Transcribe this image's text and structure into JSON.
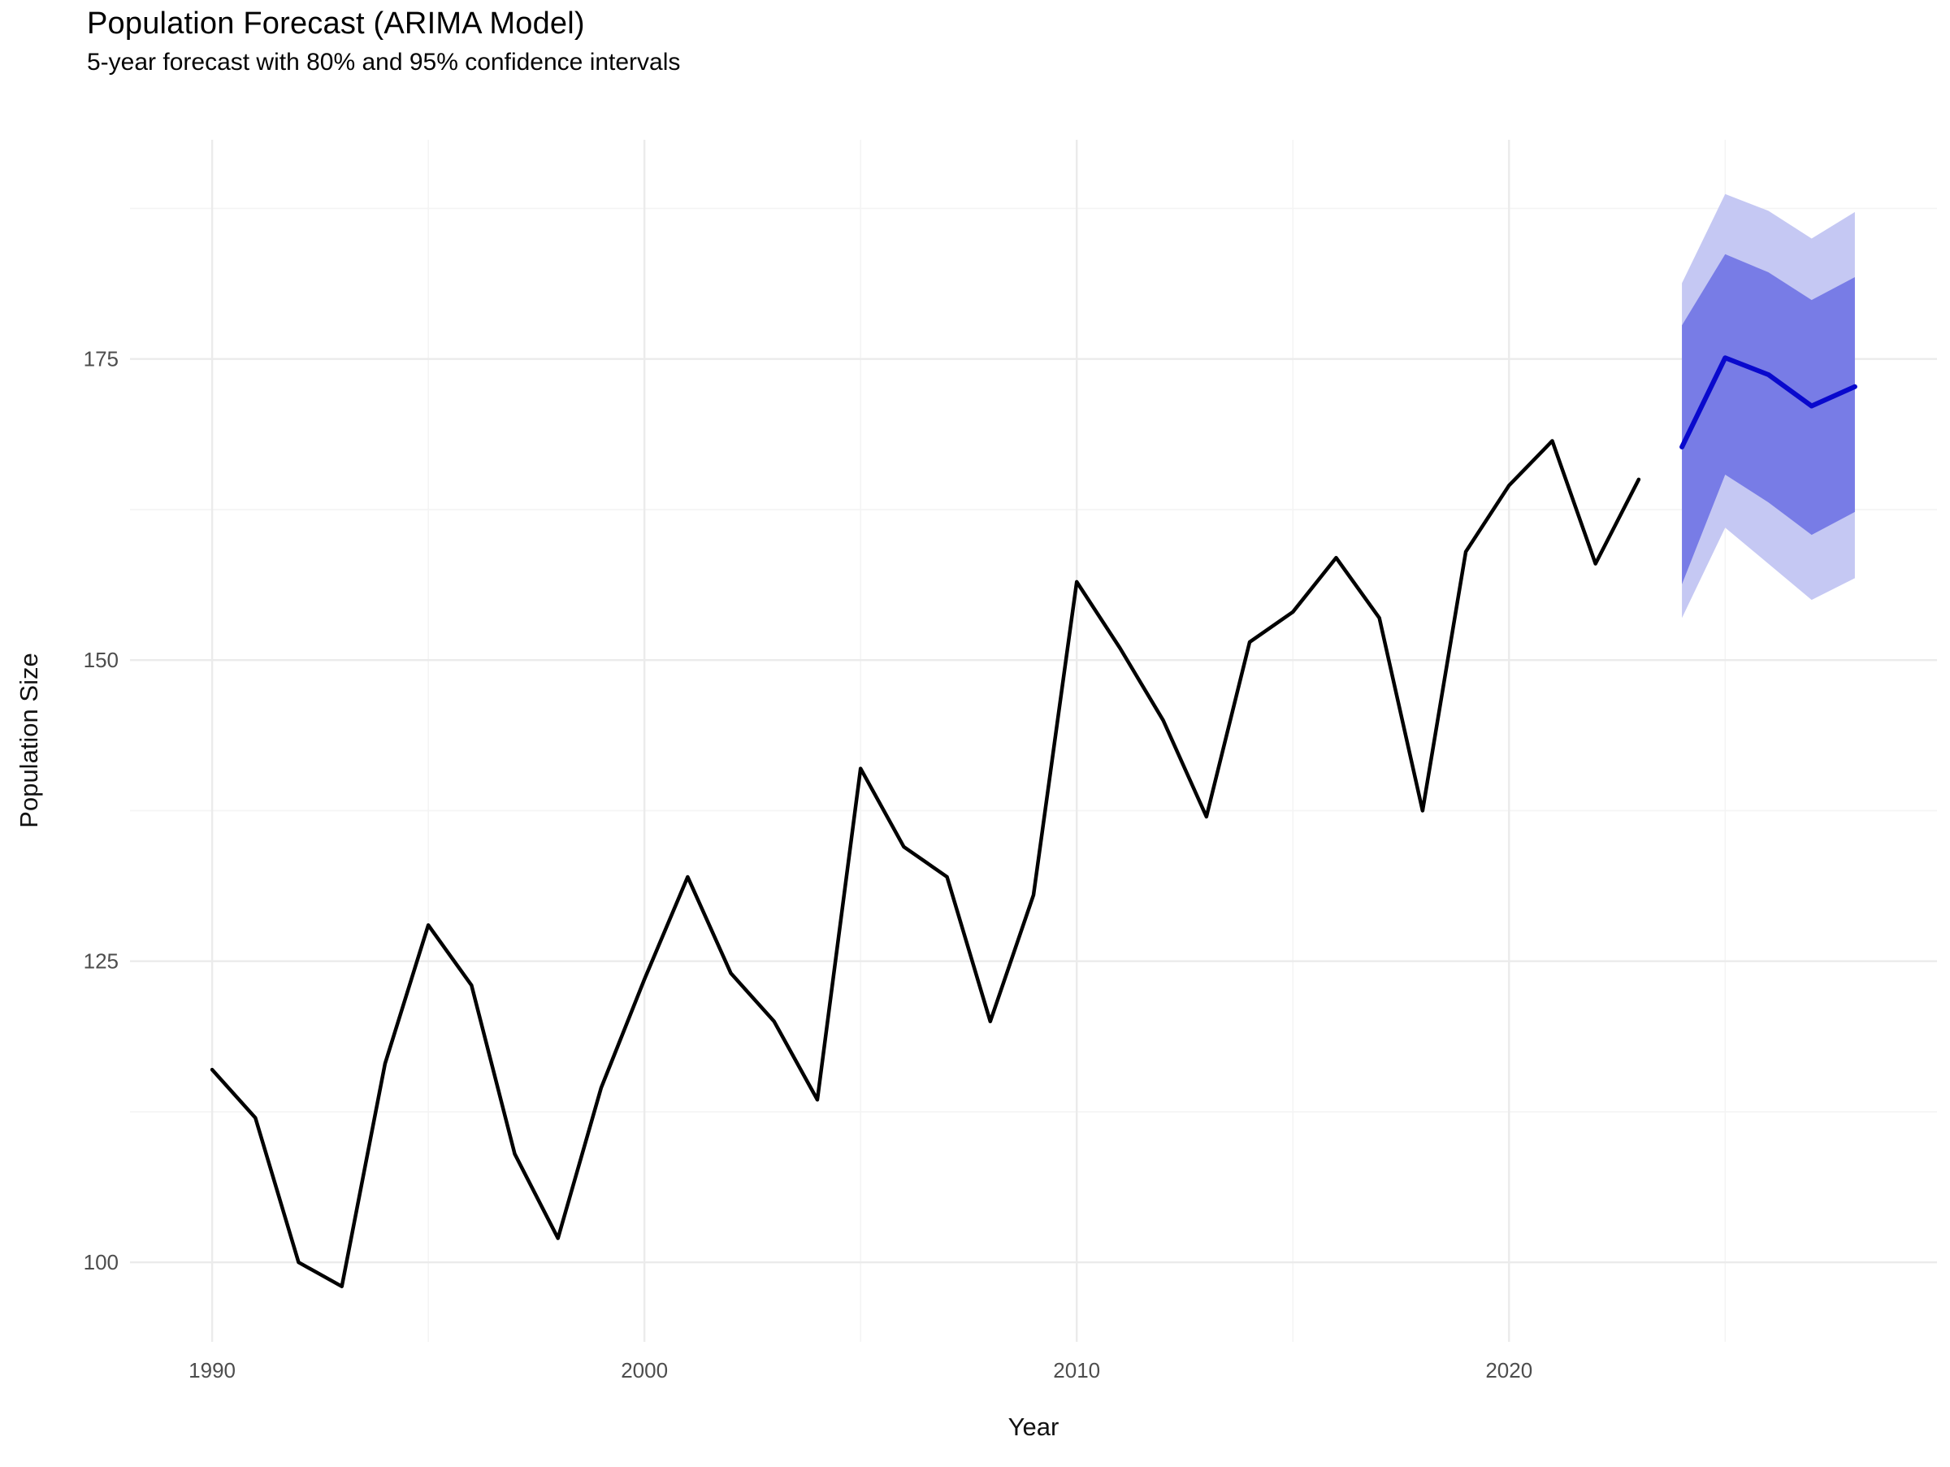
{
  "header": {
    "title": "Population Forecast (ARIMA Model)",
    "subtitle": "5-year forecast with 80% and 95% confidence intervals"
  },
  "chart_data": {
    "type": "line",
    "title": "Population Forecast (ARIMA Model)",
    "subtitle": "5-year forecast with 80% and 95% confidence intervals",
    "xlabel": "Year",
    "ylabel": "Population Size",
    "xlim": [
      1988.1,
      2029.9
    ],
    "ylim": [
      93.4,
      193.2
    ],
    "x_major_ticks": [
      1990,
      2000,
      2010,
      2020
    ],
    "x_minor_ticks": [
      1995,
      2005,
      2015,
      2025
    ],
    "y_major_ticks": [
      100,
      125,
      150,
      175
    ],
    "y_minor_ticks": [
      112.5,
      137.5,
      162.5,
      187.5
    ],
    "grid": true,
    "legend": false,
    "series": [
      {
        "name": "historical",
        "color": "#000000",
        "stroke_width": 4.5,
        "x": [
          1990,
          1991,
          1992,
          1993,
          1994,
          1995,
          1996,
          1997,
          1998,
          1999,
          2000,
          2001,
          2002,
          2003,
          2004,
          2005,
          2006,
          2007,
          2008,
          2009,
          2010,
          2011,
          2012,
          2013,
          2014,
          2015,
          2016,
          2017,
          2018,
          2019,
          2020,
          2021,
          2022,
          2023
        ],
        "y": [
          116,
          112,
          100,
          98,
          116.5,
          128,
          123,
          109,
          102,
          114.5,
          123.5,
          132,
          124,
          120,
          113.5,
          141,
          134.5,
          132,
          120,
          130.5,
          156.5,
          151,
          145,
          137,
          151.5,
          154,
          158.5,
          153.5,
          137.5,
          159,
          164.5,
          168.2,
          158,
          165
        ]
      },
      {
        "name": "forecast",
        "color": "#0909CD",
        "stroke_width": 6,
        "x": [
          2024,
          2025,
          2026,
          2027,
          2028
        ],
        "y": [
          167.7,
          175.1,
          173.7,
          171.1,
          172.7
        ]
      }
    ],
    "intervals": [
      {
        "name": "95% confidence interval",
        "fill": "#C5C8F3",
        "x": [
          2024,
          2025,
          2026,
          2027,
          2028
        ],
        "lower": [
          153.5,
          161.0,
          158.0,
          155.0,
          156.8
        ],
        "upper": [
          181.3,
          188.7,
          187.3,
          185.0,
          187.2
        ]
      },
      {
        "name": "80% confidence interval",
        "fill": "#787CE6",
        "x": [
          2024,
          2025,
          2026,
          2027,
          2028
        ],
        "lower": [
          156.3,
          165.4,
          163.1,
          160.4,
          162.3
        ],
        "upper": [
          177.8,
          183.7,
          182.2,
          179.9,
          181.8
        ]
      }
    ],
    "style": {
      "background": "#FFFFFF",
      "major_grid_color": "#EBEBEB",
      "minor_grid_color": "#F4F4F4",
      "tick_label_color": "#4D4D4D",
      "axis_title_color": "#111111",
      "tick_label_size": 26
    }
  }
}
